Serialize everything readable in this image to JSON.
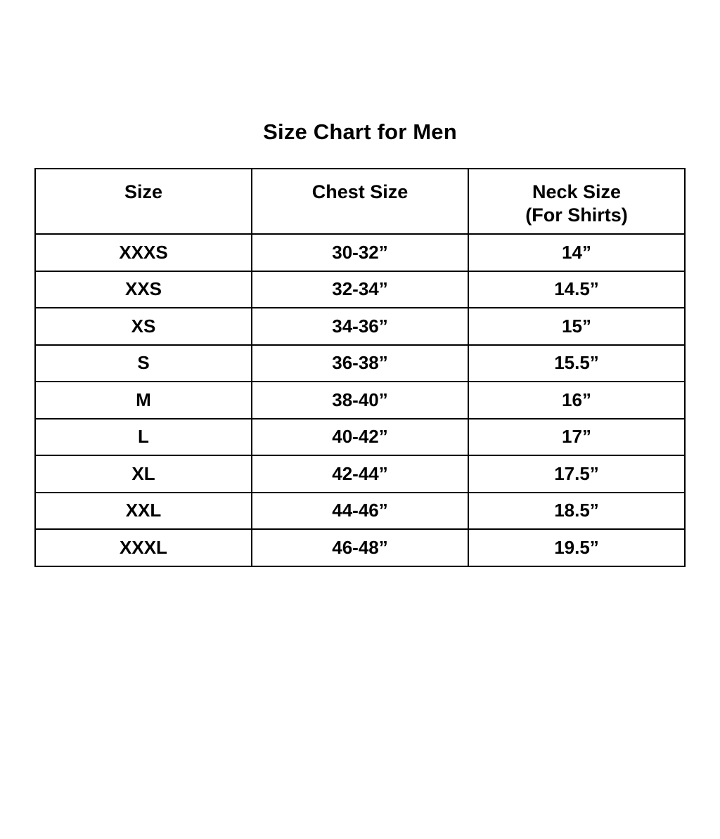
{
  "title": "Size Chart for Men",
  "table": {
    "header": {
      "size": "Size",
      "chest": "Chest Size",
      "neck_line1": "Neck Size",
      "neck_line2": "(For Shirts)"
    }
  },
  "chart_data": {
    "type": "table",
    "title": "Size Chart for Men",
    "columns": [
      "Size",
      "Chest Size",
      "Neck Size (For Shirts)"
    ],
    "rows": [
      [
        "XXXS",
        "30-32”",
        "14”"
      ],
      [
        "XXS",
        "32-34”",
        "14.5”"
      ],
      [
        "XS",
        "34-36”",
        "15”"
      ],
      [
        "S",
        "36-38”",
        "15.5”"
      ],
      [
        "M",
        "38-40”",
        "16”"
      ],
      [
        "L",
        "40-42”",
        "17”"
      ],
      [
        "XL",
        "42-44”",
        "17.5”"
      ],
      [
        "XXL",
        "44-46”",
        "18.5”"
      ],
      [
        "XXXL",
        "46-48”",
        "19.5”"
      ]
    ],
    "layout": {
      "columns_equal_width": true,
      "grid": true,
      "border_color": "#000000",
      "text_color": "#000000",
      "background_color": "#ffffff"
    }
  },
  "colors": {
    "background": "#ffffff",
    "border": "#000000",
    "text": "#000000"
  }
}
